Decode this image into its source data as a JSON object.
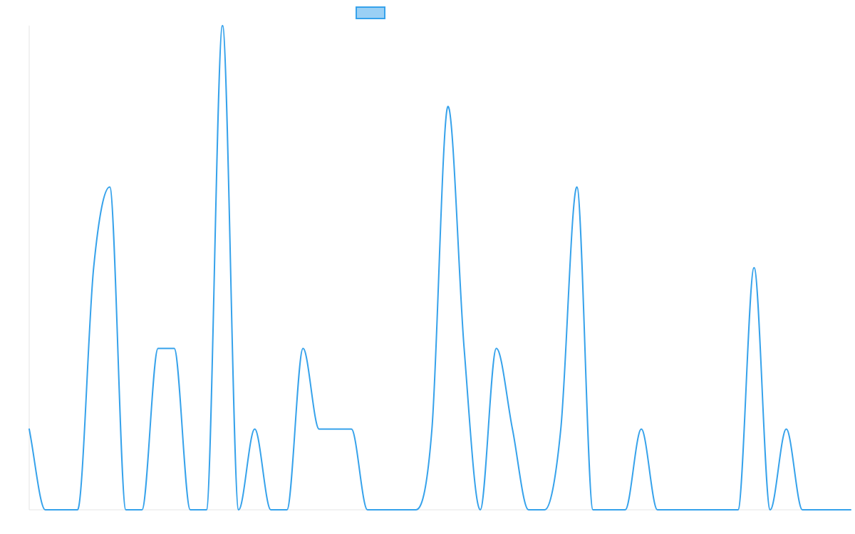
{
  "chart_data": {
    "type": "line",
    "title": "",
    "xlabel": "",
    "ylabel": "",
    "ylim": [
      0,
      6
    ],
    "grid": false,
    "legend_placement": "top-center",
    "x": [
      0,
      1,
      2,
      3,
      4,
      5,
      6,
      7,
      8,
      9,
      10,
      11,
      12,
      13,
      14,
      15,
      16,
      17,
      18,
      19,
      20,
      21,
      22,
      23,
      24,
      25,
      26,
      27,
      28,
      29,
      30,
      31,
      32,
      33,
      34,
      35,
      36,
      37,
      38,
      39,
      40,
      41,
      42,
      43,
      44,
      45,
      46,
      47,
      48,
      49,
      50,
      51
    ],
    "series": [
      {
        "name": "",
        "color": "#36a2eb",
        "fill": "#9ad0f5",
        "values": [
          1,
          0,
          0,
          0,
          3,
          4,
          0,
          0,
          2,
          2,
          0,
          0,
          6,
          0,
          1,
          0,
          0,
          2,
          1,
          1,
          1,
          0,
          0,
          0,
          0,
          1,
          5,
          2,
          0,
          2,
          1,
          0,
          0,
          1,
          4,
          0,
          0,
          0,
          1,
          0,
          0,
          0,
          0,
          0,
          0,
          3,
          0,
          1,
          0,
          0,
          0,
          0
        ]
      }
    ]
  }
}
